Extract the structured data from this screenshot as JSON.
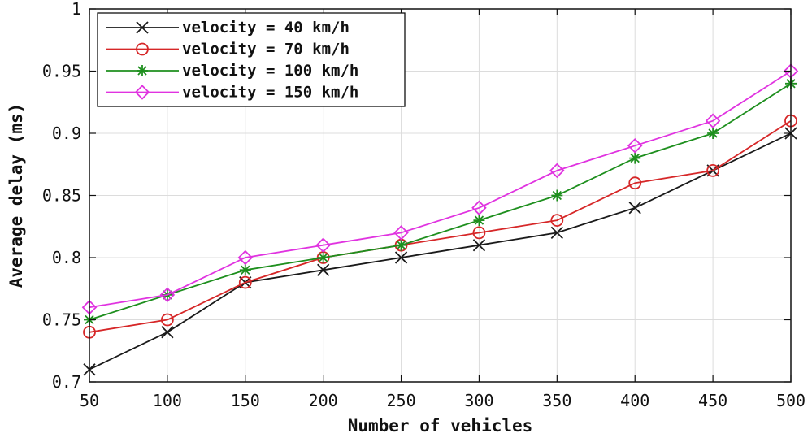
{
  "chart_data": {
    "type": "line",
    "xlabel": "Number of vehicles",
    "ylabel": "Average delay (ms)",
    "x": [
      50,
      100,
      150,
      200,
      250,
      300,
      350,
      400,
      450,
      500
    ],
    "xlim": [
      50,
      500
    ],
    "ylim": [
      0.7,
      1.0
    ],
    "xticks": [
      50,
      100,
      150,
      200,
      250,
      300,
      350,
      400,
      450,
      500
    ],
    "yticks": [
      0.7,
      0.75,
      0.8,
      0.85,
      0.9,
      0.95,
      1.0
    ],
    "xtick_labels": [
      "50",
      "100",
      "150",
      "200",
      "250",
      "300",
      "350",
      "400",
      "450",
      "500"
    ],
    "ytick_labels": [
      "0.7",
      "0.75",
      "0.8",
      "0.85",
      "0.9",
      "0.95",
      "1"
    ],
    "grid": true,
    "legend_position": "top-left",
    "series": [
      {
        "name": "velocity = 40 km/h",
        "color": "#1a1a1a",
        "marker": "x",
        "values": [
          0.71,
          0.74,
          0.78,
          0.79,
          0.8,
          0.81,
          0.82,
          0.84,
          0.87,
          0.9
        ]
      },
      {
        "name": "velocity = 70 km/h",
        "color": "#d62728",
        "marker": "circle",
        "values": [
          0.74,
          0.75,
          0.78,
          0.8,
          0.81,
          0.82,
          0.83,
          0.86,
          0.87,
          0.91
        ]
      },
      {
        "name": "velocity = 100 km/h",
        "color": "#1e8f1e",
        "marker": "star",
        "values": [
          0.75,
          0.77,
          0.79,
          0.8,
          0.81,
          0.83,
          0.85,
          0.88,
          0.9,
          0.94
        ]
      },
      {
        "name": "velocity = 150 km/h",
        "color": "#e033e0",
        "marker": "diamond",
        "values": [
          0.76,
          0.77,
          0.8,
          0.81,
          0.82,
          0.84,
          0.87,
          0.89,
          0.91,
          0.95
        ]
      }
    ]
  }
}
